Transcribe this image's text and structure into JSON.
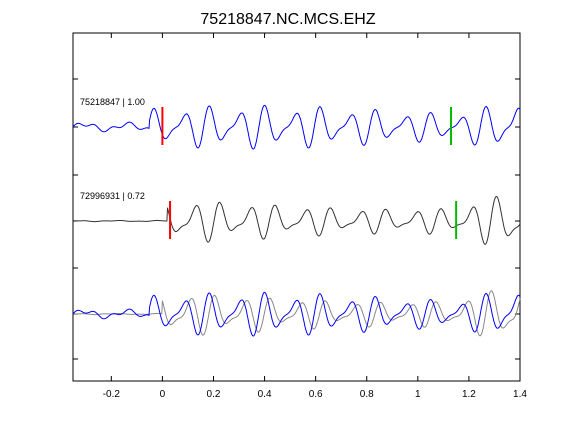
{
  "chart_data": {
    "type": "line",
    "title": "75218847.NC.MCS.EHZ",
    "xlabel": "",
    "ylabel": "",
    "xlim": [
      -0.35,
      1.4
    ],
    "x_ticks": [
      "-0.2",
      "0",
      "0.2",
      "0.4",
      "0.6",
      "0.8",
      "1",
      "1.2",
      "1.4"
    ],
    "x_tick_values": [
      -0.2,
      0,
      0.2,
      0.4,
      0.6,
      0.8,
      1.0,
      1.2,
      1.4
    ],
    "grid": false,
    "traces": [
      {
        "label": "75218847 | 1.00",
        "color": "#0000ff",
        "p_pick": 0.0,
        "s_pick": 1.13,
        "p_color": "#ff0000",
        "s_color": "#00bb00"
      },
      {
        "label": "72996931 | 0.72",
        "color": "#333333",
        "p_pick": 0.03,
        "s_pick": 1.15,
        "p_color": "#ff0000",
        "s_color": "#00bb00"
      }
    ],
    "overlay": {
      "series_colors": [
        "#0000ff",
        "#888888"
      ]
    }
  }
}
